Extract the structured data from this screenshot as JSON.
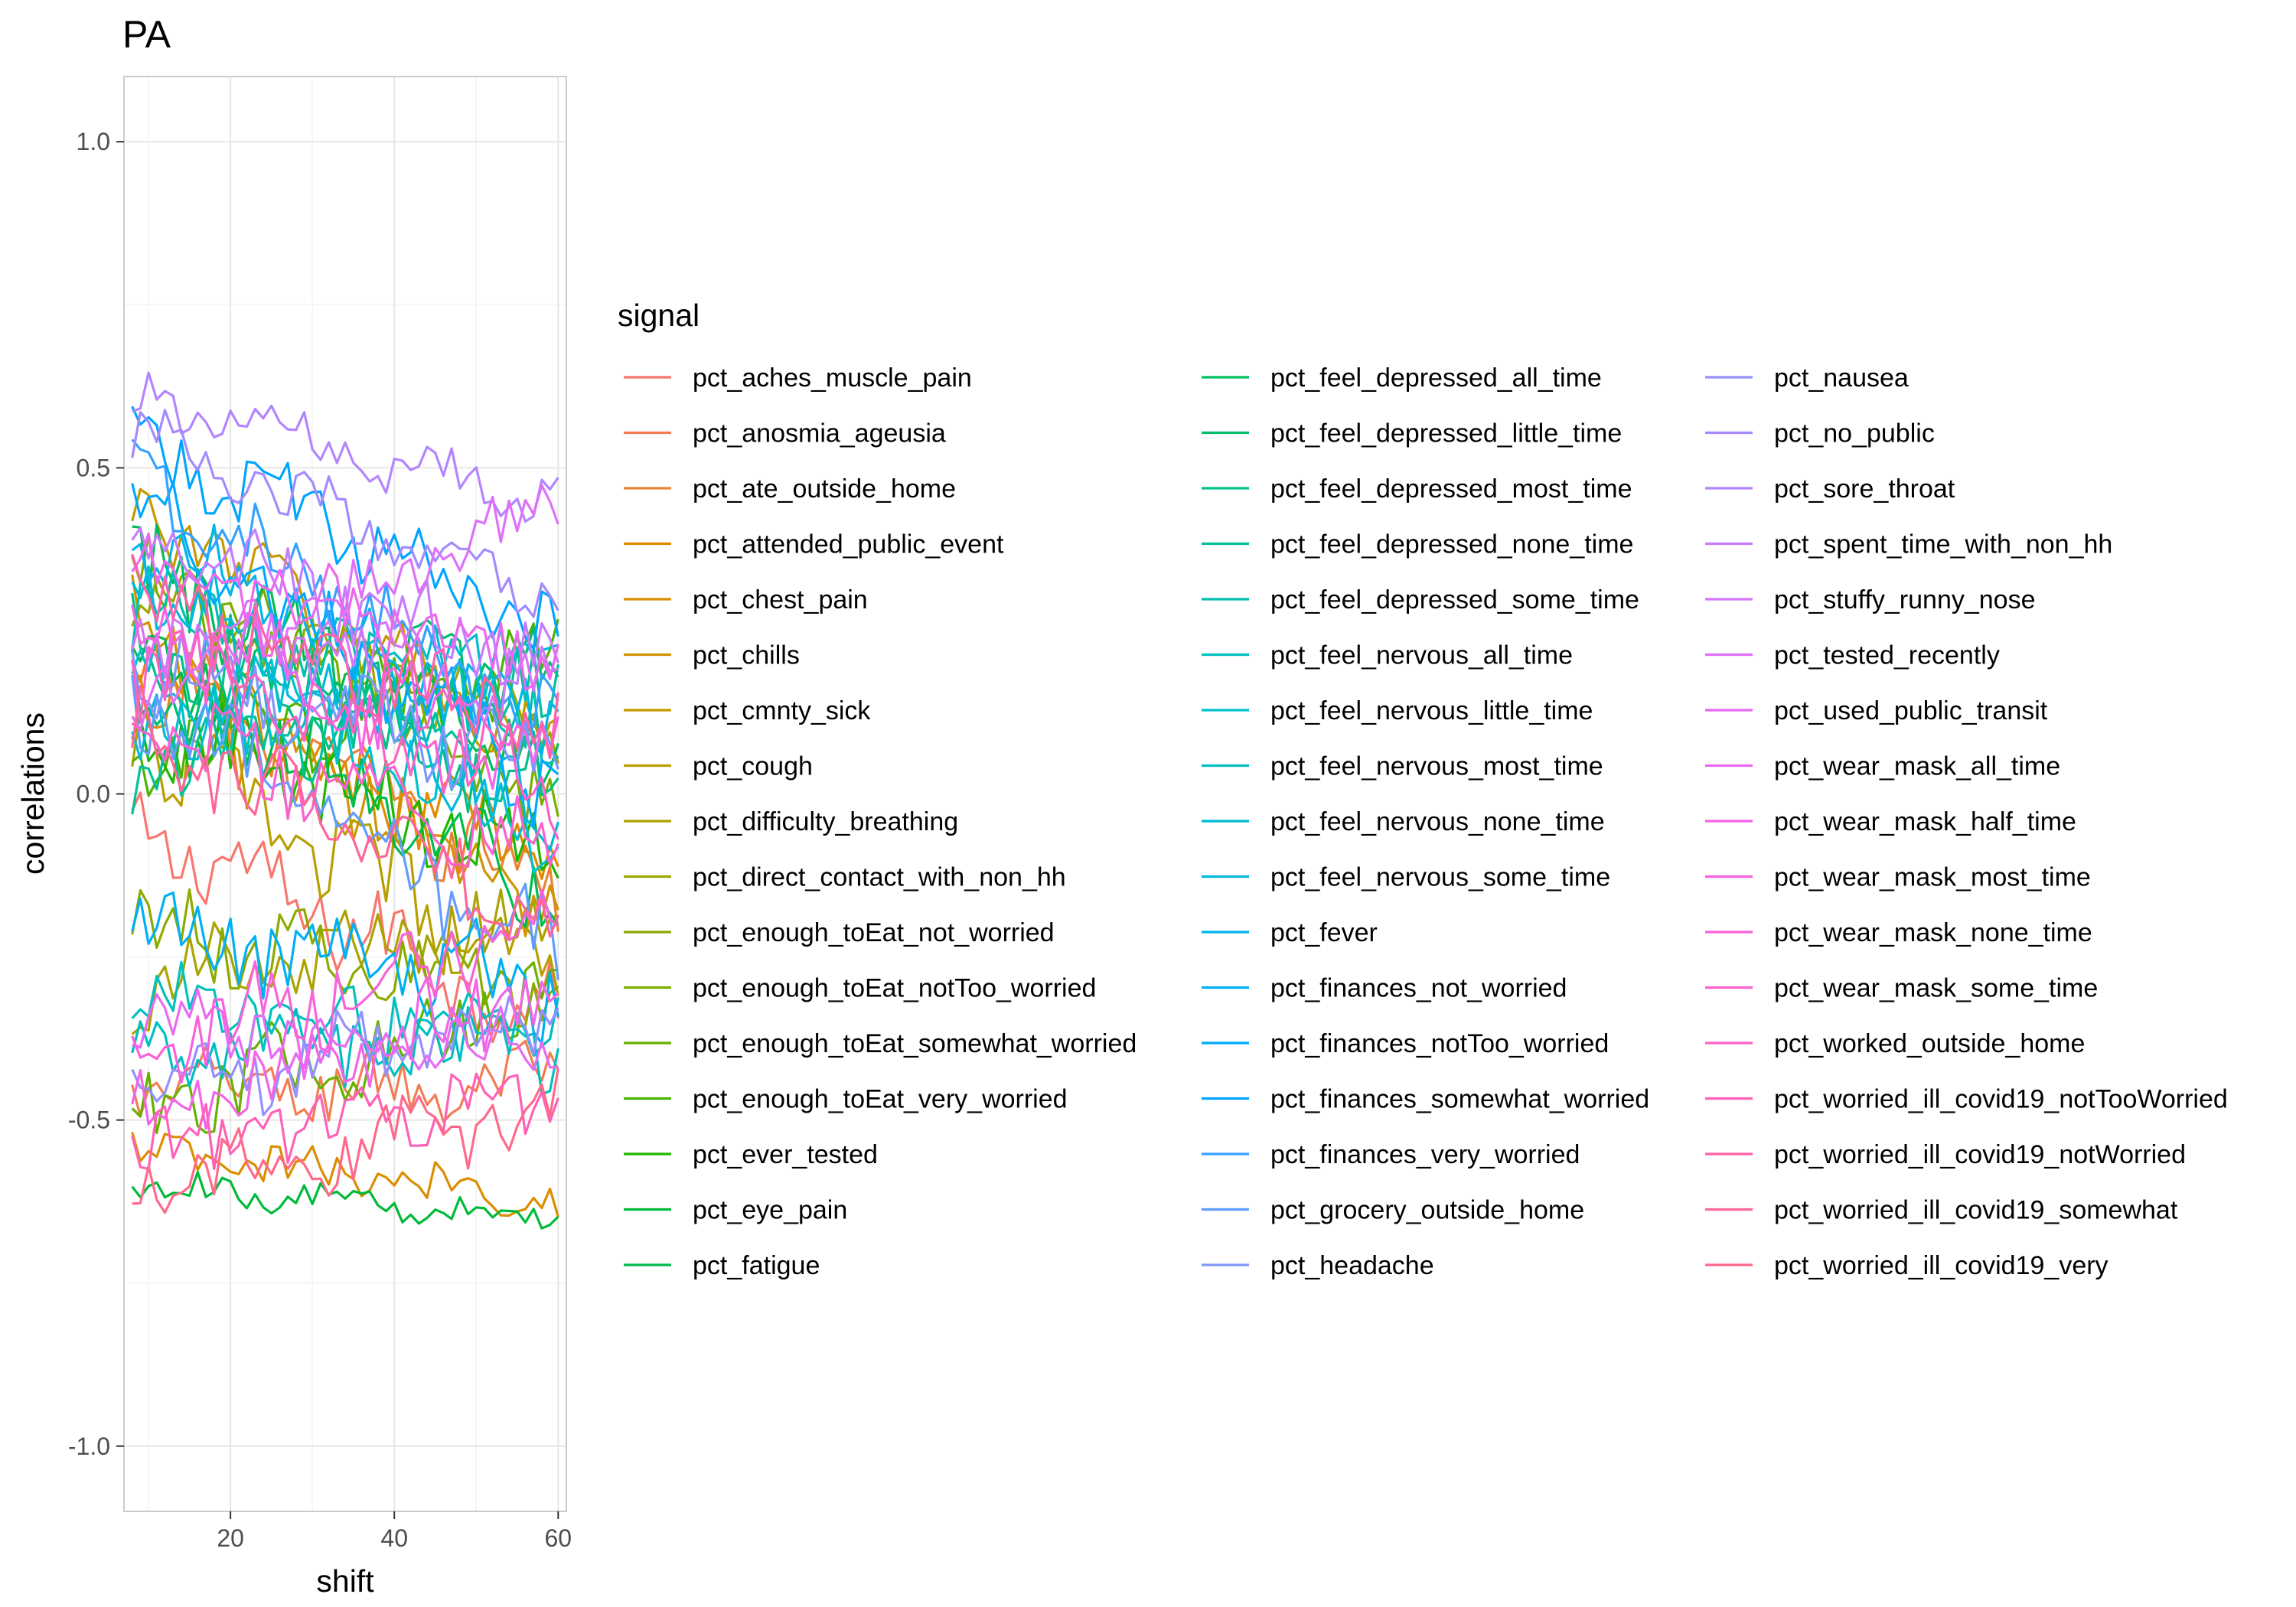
{
  "chart_data": {
    "type": "line",
    "title": "PA",
    "xlabel": "shift",
    "ylabel": "correlations",
    "xlim": [
      7,
      61
    ],
    "ylim": [
      -1.1,
      1.1
    ],
    "x_ticks": [
      20,
      40,
      60
    ],
    "y_ticks": [
      1.0,
      0.5,
      0.0,
      -0.5,
      -1.0
    ],
    "y_tick_labels": [
      "1.0",
      "0.5",
      "0.0",
      "-0.5",
      "-1.0"
    ],
    "x_range": [
      8,
      60
    ],
    "grid": true,
    "legend": {
      "title": "signal",
      "placement": "right",
      "columns": 3
    },
    "series": [
      {
        "name": "pct_aches_muscle_pain",
        "color": "#F8766D",
        "start": -0.05,
        "end": -0.35,
        "noise": 0.06
      },
      {
        "name": "pct_anosmia_ageusia",
        "color": "#F27D53",
        "start": -0.45,
        "end": -0.45,
        "noise": 0.05
      },
      {
        "name": "pct_ate_outside_home",
        "color": "#EA8331",
        "start": 0.2,
        "end": -0.15,
        "noise": 0.06
      },
      {
        "name": "pct_attended_public_event",
        "color": "#E38900",
        "start": 0.15,
        "end": -0.1,
        "noise": 0.06
      },
      {
        "name": "pct_chest_pain",
        "color": "#DB8E00",
        "start": -0.55,
        "end": -0.62,
        "noise": 0.03
      },
      {
        "name": "pct_chills",
        "color": "#D19300",
        "start": 0.25,
        "end": -0.2,
        "noise": 0.06
      },
      {
        "name": "pct_cmnty_sick",
        "color": "#C49A00",
        "start": 0.45,
        "end": 0.05,
        "noise": 0.05
      },
      {
        "name": "pct_cough",
        "color": "#B79F00",
        "start": 0.1,
        "end": -0.3,
        "noise": 0.06
      },
      {
        "name": "pct_difficulty_breathing",
        "color": "#ABA300",
        "start": -0.3,
        "end": -0.2,
        "noise": 0.06
      },
      {
        "name": "pct_direct_contact_with_non_hh",
        "color": "#9CA700",
        "start": 0.3,
        "end": 0.1,
        "noise": 0.05
      },
      {
        "name": "pct_enough_toEat_not_worried",
        "color": "#8CAB00",
        "start": -0.2,
        "end": -0.3,
        "noise": 0.06
      },
      {
        "name": "pct_enough_toEat_notToo_worried",
        "color": "#7CAE00",
        "start": 0.35,
        "end": 0.0,
        "noise": 0.06
      },
      {
        "name": "pct_enough_toEat_somewhat_worried",
        "color": "#68B100",
        "start": -0.5,
        "end": -0.3,
        "noise": 0.06
      },
      {
        "name": "pct_enough_toEat_very_worried",
        "color": "#4EB400",
        "start": 0.05,
        "end": 0.2,
        "noise": 0.06
      },
      {
        "name": "pct_ever_tested",
        "color": "#1DB700",
        "start": 0.1,
        "end": -0.1,
        "noise": 0.06
      },
      {
        "name": "pct_eye_pain",
        "color": "#00BA38",
        "start": -0.6,
        "end": -0.65,
        "noise": 0.02
      },
      {
        "name": "pct_fatigue",
        "color": "#00BB4E",
        "start": 0.2,
        "end": -0.15,
        "noise": 0.06
      },
      {
        "name": "pct_feel_depressed_all_time",
        "color": "#00BD5C",
        "start": 0.35,
        "end": 0.05,
        "noise": 0.06
      },
      {
        "name": "pct_feel_depressed_little_time",
        "color": "#00BE6C",
        "start": 0.15,
        "end": 0.2,
        "noise": 0.06
      },
      {
        "name": "pct_feel_depressed_most_time",
        "color": "#00C08B",
        "start": 0.25,
        "end": 0.0,
        "noise": 0.06
      },
      {
        "name": "pct_feel_depressed_none_time",
        "color": "#00C19A",
        "start": 0.05,
        "end": 0.15,
        "noise": 0.06
      },
      {
        "name": "pct_feel_depressed_some_time",
        "color": "#00C0AF",
        "start": 0.3,
        "end": 0.1,
        "noise": 0.06
      },
      {
        "name": "pct_feel_nervous_all_time",
        "color": "#00C1BF",
        "start": -0.3,
        "end": -0.4,
        "noise": 0.05
      },
      {
        "name": "pct_feel_nervous_little_time",
        "color": "#00C0CC",
        "start": 0.2,
        "end": -0.05,
        "noise": 0.06
      },
      {
        "name": "pct_feel_nervous_most_time",
        "color": "#00BFC4",
        "start": -0.4,
        "end": -0.35,
        "noise": 0.05
      },
      {
        "name": "pct_feel_nervous_none_time",
        "color": "#00BDD0",
        "start": 0.1,
        "end": 0.25,
        "noise": 0.06
      },
      {
        "name": "pct_feel_nervous_some_time",
        "color": "#00BAE0",
        "start": 0.35,
        "end": -0.05,
        "noise": 0.06
      },
      {
        "name": "pct_fever",
        "color": "#00B6EB",
        "start": 0.4,
        "end": 0.1,
        "noise": 0.05
      },
      {
        "name": "pct_finances_not_worried",
        "color": "#00B0F6",
        "start": -0.2,
        "end": -0.3,
        "noise": 0.06
      },
      {
        "name": "pct_finances_notToo_worried",
        "color": "#00A9FF",
        "start": 0.45,
        "end": 0.0,
        "noise": 0.06
      },
      {
        "name": "pct_finances_somewhat_worried",
        "color": "#00A5FF",
        "start": 0.55,
        "end": 0.25,
        "noise": 0.05
      },
      {
        "name": "pct_finances_very_worried",
        "color": "#35A2FF",
        "start": 0.5,
        "end": 0.1,
        "noise": 0.05
      },
      {
        "name": "pct_grocery_outside_home",
        "color": "#619CFF",
        "start": 0.15,
        "end": -0.25,
        "noise": 0.06
      },
      {
        "name": "pct_headache",
        "color": "#7F96FF",
        "start": 0.2,
        "end": 0.05,
        "noise": 0.06
      },
      {
        "name": "pct_nausea",
        "color": "#9590FF",
        "start": -0.45,
        "end": -0.35,
        "noise": 0.05
      },
      {
        "name": "pct_no_public",
        "color": "#A58AFF",
        "start": 0.55,
        "end": 0.3,
        "noise": 0.04
      },
      {
        "name": "pct_sore_throat",
        "color": "#B385FF",
        "start": 0.6,
        "end": 0.45,
        "noise": 0.04
      },
      {
        "name": "pct_spent_time_with_non_hh",
        "color": "#C77CFF",
        "start": 0.4,
        "end": 0.2,
        "noise": 0.05
      },
      {
        "name": "pct_stuffy_runny_nose",
        "color": "#D376F9",
        "start": 0.25,
        "end": 0.15,
        "noise": 0.06
      },
      {
        "name": "pct_tested_recently",
        "color": "#DF70F8",
        "start": 0.15,
        "end": 0.45,
        "noise": 0.04
      },
      {
        "name": "pct_used_public_transit",
        "color": "#E76BF3",
        "start": -0.35,
        "end": -0.4,
        "noise": 0.05
      },
      {
        "name": "pct_wear_mask_all_time",
        "color": "#ED68ED",
        "start": 0.35,
        "end": 0.2,
        "noise": 0.05
      },
      {
        "name": "pct_wear_mask_half_time",
        "color": "#F265E7",
        "start": -0.5,
        "end": -0.3,
        "noise": 0.06
      },
      {
        "name": "pct_wear_mask_most_time",
        "color": "#F564E3",
        "start": 0.25,
        "end": 0.05,
        "noise": 0.06
      },
      {
        "name": "pct_wear_mask_none_time",
        "color": "#F862DA",
        "start": -0.4,
        "end": -0.2,
        "noise": 0.06
      },
      {
        "name": "pct_wear_mask_some_time",
        "color": "#FA62D0",
        "start": 0.1,
        "end": -0.1,
        "noise": 0.06
      },
      {
        "name": "pct_worked_outside_home",
        "color": "#FC61C5",
        "start": 0.2,
        "end": 0.0,
        "noise": 0.06
      },
      {
        "name": "pct_worried_ill_covid19_notTooWorried",
        "color": "#FE61B7",
        "start": -0.55,
        "end": -0.45,
        "noise": 0.05
      },
      {
        "name": "pct_worried_ill_covid19_notWorried",
        "color": "#FF62A9",
        "start": 0.3,
        "end": 0.1,
        "noise": 0.06
      },
      {
        "name": "pct_worried_ill_covid19_somewhat",
        "color": "#FF659A",
        "start": 0.1,
        "end": -0.2,
        "noise": 0.06
      },
      {
        "name": "pct_worried_ill_covid19_very",
        "color": "#FF6A8B",
        "start": -0.6,
        "end": -0.48,
        "noise": 0.05
      }
    ]
  }
}
